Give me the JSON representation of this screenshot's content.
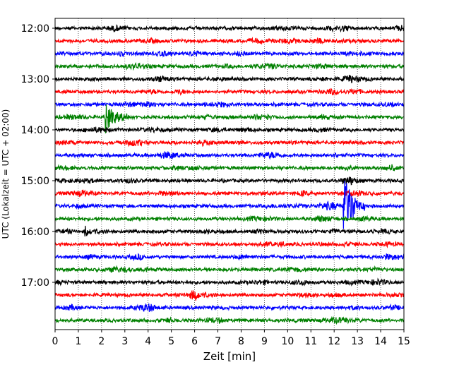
{
  "chart_data": {
    "type": "line",
    "title": "",
    "xlabel": "Zeit  [min]",
    "ylabel": "UTC (Lokalzeit = UTC + 02:00)",
    "xlim": [
      0,
      15
    ],
    "x_ticks": [
      "0",
      "1",
      "2",
      "3",
      "4",
      "5",
      "6",
      "7",
      "8",
      "9",
      "10",
      "11",
      "12",
      "13",
      "14",
      "15"
    ],
    "y_tick_labels": [
      "12:00",
      "13:00",
      "14:00",
      "15:00",
      "16:00",
      "17:00"
    ],
    "grid": "vertical dotted",
    "trace_count": 24,
    "trace_interval_min": 15,
    "trace_colors": [
      "#000000",
      "#ff0000",
      "#0000ff",
      "#008000"
    ],
    "events": [
      {
        "trace": 7,
        "minute": 2.2,
        "amplitude": 1.6
      },
      {
        "trace": 14,
        "minute": 12.45,
        "amplitude": 3.5
      },
      {
        "trace": 16,
        "minute": 1.3,
        "amplitude": 0.7
      },
      {
        "trace": 21,
        "minute": 6.1,
        "amplitude": 0.5
      }
    ]
  }
}
